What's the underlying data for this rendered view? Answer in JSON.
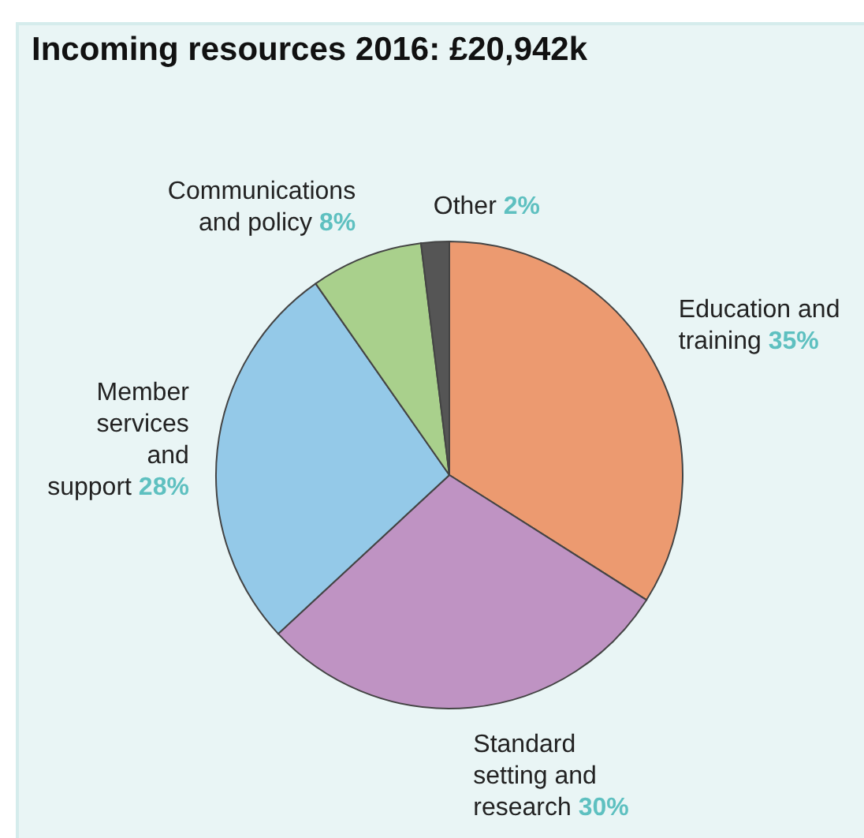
{
  "chart_data": {
    "type": "pie",
    "title": "Incoming resources 2016: £20,942k",
    "categories": [
      "Education and training",
      "Standard setting and research",
      "Member services and support",
      "Communications and policy",
      "Other"
    ],
    "values": [
      35,
      30,
      28,
      8,
      2
    ],
    "value_labels": [
      "35%",
      "30%",
      "28%",
      "8%",
      "2%"
    ],
    "colors": [
      "#ec9a70",
      "#bf93c3",
      "#94c9e8",
      "#a9d08c",
      "#555555"
    ],
    "legend": false
  }
}
